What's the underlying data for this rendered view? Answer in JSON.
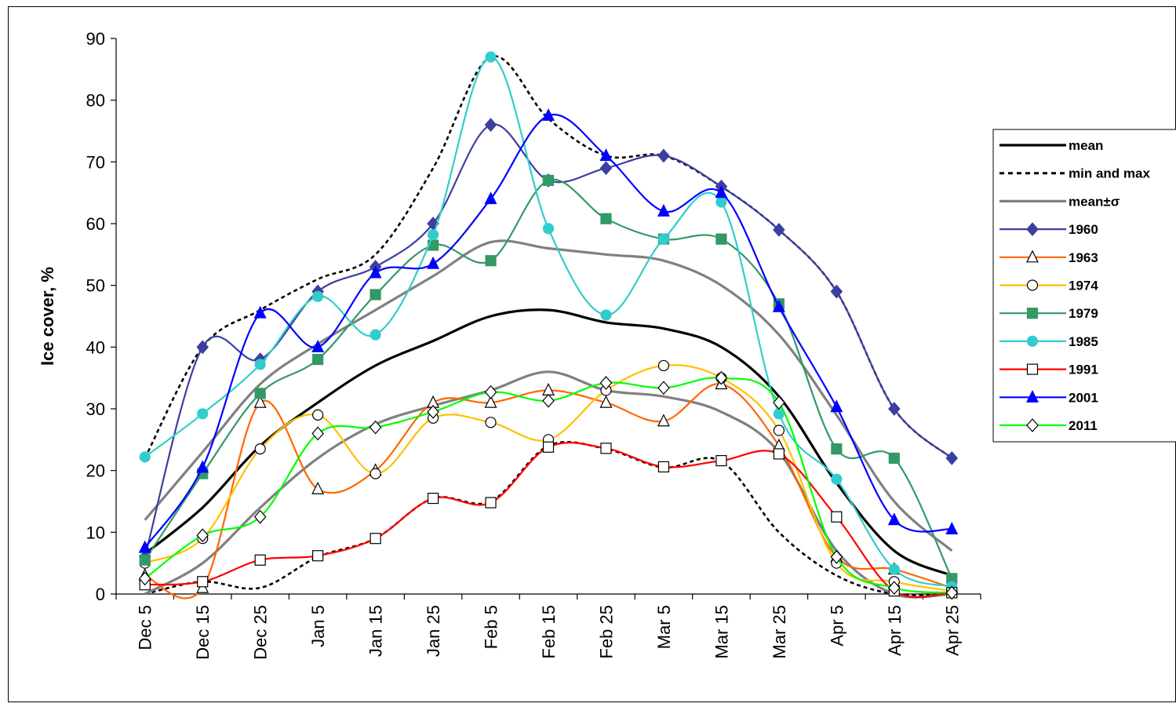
{
  "chart_data": {
    "type": "line",
    "title": "",
    "ylabel": "Ice cover, %",
    "xlabel": "",
    "ylim": [
      0,
      90
    ],
    "yticks": [
      0,
      10,
      20,
      30,
      40,
      50,
      60,
      70,
      80,
      90
    ],
    "grid": false,
    "legend_placement": "right",
    "categories": [
      "Dec 5",
      "Dec 15",
      "Dec 25",
      "Jan 5",
      "Jan 15",
      "Jan 25",
      "Feb 5",
      "Feb 15",
      "Feb 25",
      "Mar 5",
      "Mar 15",
      "Mar 25",
      "Apr 5",
      "Apr 15",
      "Apr 25"
    ],
    "series": [
      {
        "name": "mean",
        "color": "#000000",
        "style": "solid",
        "marker": "none",
        "values": [
          6.5,
          14,
          24,
          31,
          37,
          41,
          45,
          46,
          44,
          43,
          40,
          32,
          18,
          7,
          3
        ]
      },
      {
        "name": "min and max",
        "color": "#000000",
        "style": "dotted",
        "marker": "none",
        "values": [
          22,
          40,
          46,
          51,
          55,
          69,
          87,
          77,
          71,
          71,
          66,
          59,
          49,
          30,
          22
        ]
      },
      {
        "name": "min and max",
        "color": "#000000",
        "style": "dotted",
        "marker": "none",
        "legend": false,
        "values": [
          0,
          2,
          1,
          6,
          9,
          15.5,
          15,
          24,
          23.5,
          20.5,
          21.5,
          10,
          3,
          0,
          0
        ]
      },
      {
        "name": "mean±σ",
        "color": "#808080",
        "style": "solid",
        "marker": "none",
        "values": [
          12,
          23,
          34,
          40.5,
          46,
          51.5,
          57,
          56,
          55,
          54,
          50,
          42,
          29,
          15,
          7
        ]
      },
      {
        "name": "mean±σ",
        "color": "#808080",
        "style": "solid",
        "marker": "none",
        "legend": false,
        "values": [
          0,
          5,
          14,
          22,
          27.5,
          30.5,
          33,
          36,
          33,
          32,
          29.5,
          23,
          7,
          0,
          0
        ]
      },
      {
        "name": "1960",
        "color": "#3B3FA0",
        "style": "solid",
        "marker": "diamond-filled",
        "values": [
          6,
          40,
          38,
          49,
          53,
          60,
          76,
          67,
          69,
          71,
          66,
          59,
          49,
          30,
          22
        ]
      },
      {
        "name": "1963",
        "color": "#FF6600",
        "style": "solid",
        "marker": "triangle-open",
        "values": [
          3,
          1,
          31,
          17,
          20,
          31,
          31,
          33,
          31,
          28,
          34,
          24,
          6,
          4,
          1
        ]
      },
      {
        "name": "1974",
        "color": "#FFC000",
        "style": "solid",
        "marker": "circle-open",
        "values": [
          5,
          9,
          23.5,
          29,
          19.5,
          28.5,
          27.8,
          25,
          33,
          37,
          35,
          26.5,
          5,
          2,
          0.5
        ]
      },
      {
        "name": "1979",
        "color": "#339966",
        "style": "solid",
        "marker": "square-filled",
        "values": [
          5.5,
          19.5,
          32.5,
          38,
          48.5,
          56.5,
          54,
          67,
          60.8,
          57.5,
          57.5,
          47,
          23.5,
          22,
          2.5
        ]
      },
      {
        "name": "1985",
        "color": "#33CCCC",
        "style": "solid",
        "marker": "circle-filled",
        "values": [
          22.2,
          29.2,
          37.2,
          48.2,
          42,
          58.2,
          87,
          59.2,
          45.2,
          57.5,
          63.5,
          29.2,
          18.6,
          4,
          1.2
        ]
      },
      {
        "name": "1991",
        "color": "#FF0000",
        "style": "solid",
        "marker": "square-open",
        "values": [
          1.5,
          2,
          5.5,
          6.2,
          9,
          15.5,
          14.8,
          23.8,
          23.6,
          20.6,
          21.6,
          22.7,
          12.5,
          0.5,
          0.2
        ]
      },
      {
        "name": "2001",
        "color": "#0000FF",
        "style": "solid",
        "marker": "triangle-filled",
        "values": [
          7.5,
          20.5,
          45.5,
          40,
          52,
          53.5,
          64,
          77.5,
          71,
          62,
          65,
          46.5,
          30.3,
          12,
          10.5
        ]
      },
      {
        "name": "2011",
        "color": "#00FF00",
        "style": "solid",
        "marker": "diamond-open",
        "values": [
          2.5,
          9.5,
          12.5,
          26,
          27,
          29.5,
          32.7,
          31.3,
          34.2,
          33.4,
          35,
          31,
          6,
          1,
          0.2
        ]
      }
    ]
  }
}
